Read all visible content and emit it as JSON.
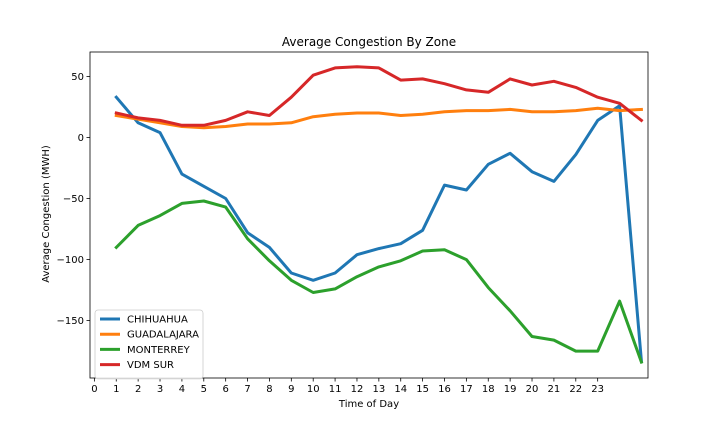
{
  "chart_data": {
    "type": "line",
    "title": "Average Congestion By Zone",
    "xlabel": "Time of Day",
    "ylabel": "Average Congestion (MWH)",
    "xlim": [
      -0.2,
      25.3
    ],
    "ylim": [
      -197,
      70
    ],
    "xticks": [
      0,
      1,
      2,
      3,
      4,
      5,
      6,
      7,
      8,
      9,
      10,
      11,
      12,
      13,
      14,
      15,
      16,
      17,
      18,
      19,
      20,
      21,
      22,
      23
    ],
    "yticks": [
      50,
      0,
      -50,
      -100,
      -150
    ],
    "legend_position": "lower-left",
    "grid": false,
    "series": [
      {
        "name": "CHIHUAHUA",
        "color": "#1f77b4",
        "x": [
          1,
          2,
          3,
          4,
          5,
          6,
          7,
          8,
          9,
          10,
          11,
          12,
          13,
          14,
          15,
          16,
          17,
          18,
          19,
          20,
          21,
          22,
          23,
          24,
          25
        ],
        "values": [
          33,
          12,
          4,
          -30,
          -40,
          -50,
          -78,
          -90,
          -111,
          -117,
          -111,
          -96,
          -91,
          -87,
          -76,
          -39,
          -43,
          -22,
          -13,
          -28,
          -36,
          -14,
          14,
          26,
          -183
        ]
      },
      {
        "name": "GUADALAJARA",
        "color": "#ff7f0e",
        "x": [
          1,
          2,
          3,
          4,
          5,
          6,
          7,
          8,
          9,
          10,
          11,
          12,
          13,
          14,
          15,
          16,
          17,
          18,
          19,
          20,
          21,
          22,
          23,
          24,
          25
        ],
        "values": [
          18,
          15,
          12,
          9,
          8,
          9,
          11,
          11,
          12,
          17,
          19,
          20,
          20,
          18,
          19,
          21,
          22,
          22,
          23,
          21,
          21,
          22,
          24,
          22,
          23
        ]
      },
      {
        "name": "MONTERREY",
        "color": "#2ca02c",
        "x": [
          1,
          2,
          3,
          4,
          5,
          6,
          7,
          8,
          9,
          10,
          11,
          12,
          13,
          14,
          15,
          16,
          17,
          18,
          19,
          20,
          21,
          22,
          23,
          24,
          25
        ],
        "values": [
          -90,
          -72,
          -64,
          -54,
          -52,
          -57,
          -83,
          -101,
          -117,
          -127,
          -124,
          -114,
          -106,
          -101,
          -93,
          -92,
          -100,
          -123,
          -142,
          -163,
          -166,
          -175,
          -175,
          -134,
          -184
        ]
      },
      {
        "name": "VDM SUR",
        "color": "#d62728",
        "x": [
          1,
          2,
          3,
          4,
          5,
          6,
          7,
          8,
          9,
          10,
          11,
          12,
          13,
          14,
          15,
          16,
          17,
          18,
          19,
          20,
          21,
          22,
          23,
          24,
          25
        ],
        "values": [
          20,
          16,
          14,
          10,
          10,
          14,
          21,
          18,
          33,
          51,
          57,
          58,
          57,
          47,
          48,
          44,
          39,
          37,
          48,
          43,
          46,
          41,
          33,
          28,
          14
        ]
      }
    ]
  }
}
